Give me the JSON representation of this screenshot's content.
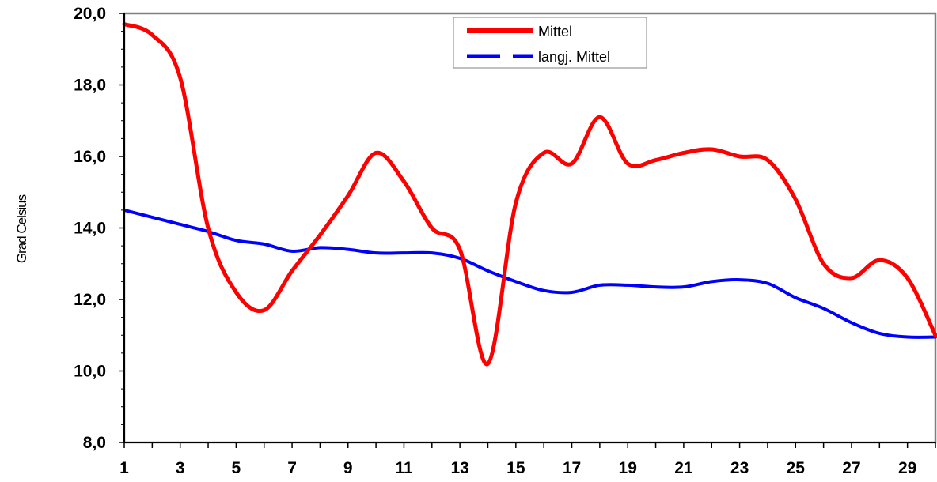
{
  "chart_data": {
    "type": "line",
    "title": "",
    "xlabel": "",
    "ylabel": "Grad Celsius",
    "xlim": [
      1,
      30
    ],
    "ylim": [
      8,
      20
    ],
    "x_tick_labels": [
      "1",
      "3",
      "5",
      "7",
      "9",
      "11",
      "13",
      "15",
      "17",
      "19",
      "21",
      "23",
      "25",
      "27",
      "29"
    ],
    "y_tick_labels": [
      "8,0",
      "10,0",
      "12,0",
      "14,0",
      "16,0",
      "18,0",
      "20,0"
    ],
    "grid": true,
    "legend_position": "top-center",
    "x": [
      1,
      2,
      3,
      4,
      5,
      6,
      7,
      8,
      9,
      10,
      11,
      12,
      13,
      14,
      15,
      16,
      17,
      18,
      19,
      20,
      21,
      22,
      23,
      24,
      25,
      26,
      27,
      28,
      29,
      30
    ],
    "series": [
      {
        "name": "Mittel",
        "color": "#ff0000",
        "style": "solid",
        "values": [
          19.7,
          19.4,
          18.2,
          14.0,
          12.2,
          11.7,
          12.8,
          13.8,
          14.9,
          16.1,
          15.3,
          14.0,
          13.4,
          10.2,
          14.7,
          16.1,
          15.8,
          17.1,
          15.8,
          15.9,
          16.1,
          16.2,
          16.0,
          15.9,
          14.8,
          13.0,
          12.6,
          13.1,
          12.6,
          11.0
        ]
      },
      {
        "name": "langj. Mittel",
        "color": "#0000ff",
        "style": "dashed",
        "values": [
          14.5,
          14.3,
          14.1,
          13.9,
          13.65,
          13.55,
          13.35,
          13.45,
          13.4,
          13.3,
          13.3,
          13.3,
          13.15,
          12.8,
          12.5,
          12.25,
          12.2,
          12.4,
          12.4,
          12.35,
          12.35,
          12.5,
          12.55,
          12.45,
          12.05,
          11.75,
          11.35,
          11.05,
          10.95,
          10.95
        ]
      }
    ]
  }
}
